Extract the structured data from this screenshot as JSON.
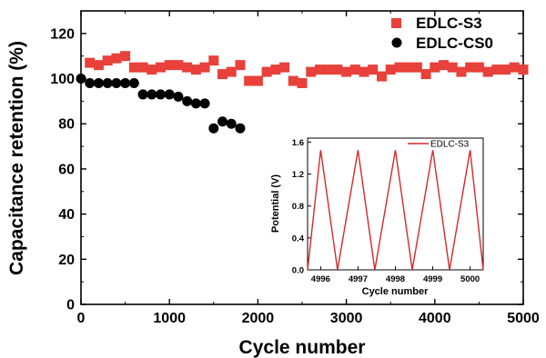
{
  "chart_data": [
    {
      "type": "scatter",
      "xlabel": "Cycle number",
      "ylabel": "Capacitance retention (%)",
      "xlim": [
        0,
        5000
      ],
      "ylim": [
        0,
        130
      ],
      "xticks": [
        0,
        1000,
        2000,
        3000,
        4000,
        5000
      ],
      "yticks": [
        0,
        20,
        40,
        60,
        80,
        100,
        120
      ],
      "grid": false,
      "legend_position": "top-right",
      "series": [
        {
          "name": "EDLC-S3",
          "marker": "square",
          "color": "#e8403a",
          "x": [
            100,
            200,
            300,
            400,
            500,
            600,
            700,
            800,
            900,
            1000,
            1100,
            1200,
            1300,
            1400,
            1500,
            1600,
            1700,
            1800,
            1900,
            2000,
            2100,
            2200,
            2300,
            2400,
            2500,
            2600,
            2700,
            2800,
            2900,
            3000,
            3100,
            3200,
            3300,
            3400,
            3500,
            3600,
            3700,
            3800,
            3900,
            4000,
            4100,
            4200,
            4300,
            4400,
            4500,
            4600,
            4700,
            4800,
            4900,
            5000
          ],
          "y": [
            107,
            106,
            108,
            109,
            110,
            105,
            105,
            104,
            105,
            106,
            106,
            105,
            104,
            105,
            108,
            102,
            103,
            106,
            99,
            99,
            103,
            104,
            105,
            99,
            98,
            103,
            104,
            104,
            104,
            103,
            104,
            103,
            104,
            101,
            104,
            105,
            105,
            105,
            102,
            105,
            106,
            105,
            103,
            105,
            105,
            103,
            104,
            104,
            105,
            104
          ]
        },
        {
          "name": "EDLC-CS0",
          "marker": "circle",
          "color": "#000000",
          "x": [
            0,
            100,
            200,
            300,
            400,
            500,
            600,
            700,
            800,
            900,
            1000,
            1100,
            1200,
            1300,
            1400,
            1500,
            1600,
            1700,
            1800
          ],
          "y": [
            100,
            98,
            98,
            98,
            98,
            98,
            98,
            93,
            93,
            93,
            93,
            92,
            90,
            89,
            89,
            78,
            81,
            80,
            78
          ]
        }
      ]
    },
    {
      "type": "line",
      "role": "inset",
      "xlabel": "Cycle number",
      "ylabel": "Potential (V)",
      "xlim": [
        4995.65,
        5000.35
      ],
      "ylim": [
        0,
        1.65
      ],
      "xticks": [
        4996,
        4997,
        4998,
        4999,
        5000
      ],
      "yticks": [
        0.0,
        0.4,
        0.8,
        1.2,
        1.6
      ],
      "ytick_labels": [
        "0.0",
        "0.4",
        "0.8",
        "1.2",
        "1.6"
      ],
      "grid": false,
      "legend_position": "top-right",
      "series": [
        {
          "name": "EDLC-S3",
          "color": "#d62828",
          "x": [
            4995.65,
            4996.0,
            4996.45,
            4997.0,
            4997.45,
            4998.0,
            4998.45,
            4999.0,
            4999.45,
            5000.0,
            5000.35
          ],
          "y": [
            0.0,
            1.5,
            0.0,
            1.5,
            0.0,
            1.5,
            0.0,
            1.5,
            0.0,
            1.5,
            0.0
          ]
        }
      ]
    }
  ]
}
